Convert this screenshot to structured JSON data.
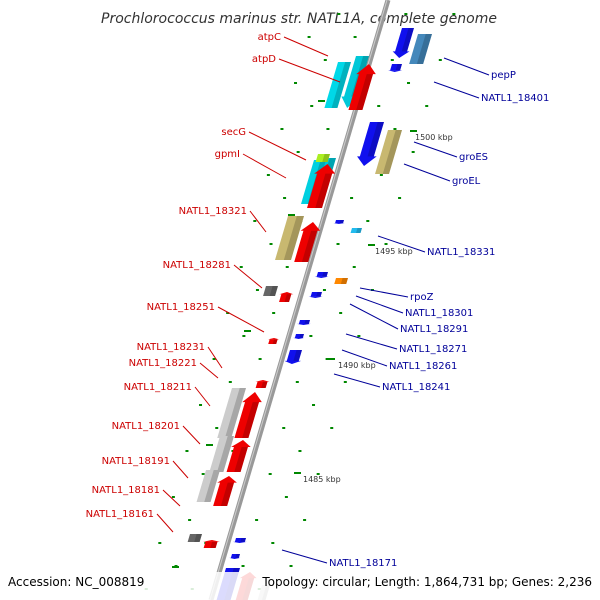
{
  "title": "Prochlorococcus marinus str. NATL1A, complete genome",
  "footer": {
    "accession": "Accession: NC_008819",
    "topology": "Topology: circular; Length: 1,864,731 bp; Genes: 2,236"
  },
  "colors": {
    "left_label": "#cc0000",
    "right_label": "#000099",
    "backbone": "#888888",
    "tick": "#008800"
  },
  "scale_labels": [
    "1500 kbp",
    "1495 kbp",
    "1490 kbp",
    "1485 kbp"
  ],
  "left_genes": [
    "atpC",
    "atpD",
    "secG",
    "gpmI",
    "NATL1_18321",
    "NATL1_18281",
    "NATL1_18251",
    "NATL1_18231",
    "NATL1_18221",
    "NATL1_18211",
    "NATL1_18201",
    "NATL1_18191",
    "NATL1_18181",
    "NATL1_18161"
  ],
  "right_genes": [
    "pepP",
    "NATL1_18401",
    "groES",
    "groEL",
    "NATL1_18331",
    "rpoZ",
    "NATL1_18301",
    "NATL1_18291",
    "NATL1_18271",
    "NATL1_18261",
    "NATL1_18241",
    "NATL1_18171"
  ]
}
